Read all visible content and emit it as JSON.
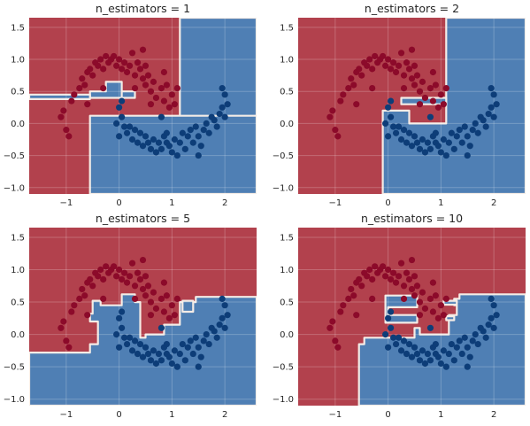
{
  "chart_data": [
    {
      "type": "scatter",
      "title": "n_estimators = 1",
      "xlim": [
        -1.7,
        2.6
      ],
      "ylim": [
        -1.1,
        1.65
      ],
      "xticks": [
        -1,
        0,
        1,
        2
      ],
      "yticks": [
        -1.0,
        -0.5,
        0.0,
        0.5,
        1.0,
        1.5
      ],
      "grid": true,
      "regions_blue": [
        [
          [
            1.15,
            1.65
          ],
          [
            2.6,
            1.65
          ],
          [
            2.6,
            0.1
          ],
          [
            1.15,
            0.1
          ]
        ],
        [
          [
            -0.55,
            0.12
          ],
          [
            2.6,
            0.12
          ],
          [
            2.6,
            -1.1
          ],
          [
            -0.55,
            -1.1
          ]
        ],
        [
          [
            -0.55,
            0.5
          ],
          [
            -0.25,
            0.5
          ],
          [
            -0.25,
            0.65
          ],
          [
            0.05,
            0.65
          ],
          [
            0.05,
            0.4
          ],
          [
            -0.55,
            0.4
          ]
        ],
        [
          [
            0.05,
            0.5
          ],
          [
            0.3,
            0.5
          ],
          [
            0.3,
            0.4
          ],
          [
            0.05,
            0.4
          ]
        ],
        [
          [
            -1.7,
            0.45
          ],
          [
            -0.55,
            0.45
          ],
          [
            -0.55,
            0.38
          ],
          [
            -1.7,
            0.38
          ]
        ]
      ]
    },
    {
      "type": "scatter",
      "title": "n_estimators = 2",
      "xlim": [
        -1.7,
        2.6
      ],
      "ylim": [
        -1.1,
        1.65
      ],
      "xticks": [
        -1,
        0,
        1,
        2
      ],
      "yticks": [
        -1.0,
        -0.5,
        0.0,
        0.5,
        1.0,
        1.5
      ],
      "grid": true,
      "regions_blue": [
        [
          [
            1.1,
            1.65
          ],
          [
            2.6,
            1.65
          ],
          [
            2.6,
            -1.1
          ],
          [
            -0.1,
            -1.1
          ],
          [
            -0.1,
            0.2
          ],
          [
            0.4,
            0.2
          ],
          [
            0.4,
            0.0
          ],
          [
            1.1,
            0.0
          ]
        ],
        [
          [
            0.25,
            0.4
          ],
          [
            1.1,
            0.4
          ],
          [
            1.1,
            0.3
          ],
          [
            0.25,
            0.3
          ]
        ]
      ]
    },
    {
      "type": "scatter",
      "title": "n_estimators = 5",
      "xlim": [
        -1.7,
        2.6
      ],
      "ylim": [
        -1.1,
        1.65
      ],
      "xticks": [
        -1,
        0,
        1,
        2
      ],
      "yticks": [
        -1.0,
        -0.5,
        0.0,
        0.5,
        1.0,
        1.5
      ],
      "grid": true,
      "regions_blue": [
        [
          [
            -1.7,
            -0.28
          ],
          [
            -0.55,
            -0.28
          ],
          [
            -0.55,
            -0.15
          ],
          [
            -0.4,
            -0.15
          ],
          [
            -0.4,
            0.2
          ],
          [
            -0.55,
            0.2
          ],
          [
            -0.55,
            0.32
          ],
          [
            -0.5,
            0.32
          ],
          [
            -0.5,
            0.52
          ],
          [
            -0.35,
            0.52
          ],
          [
            -0.35,
            0.45
          ],
          [
            0.05,
            0.45
          ],
          [
            0.05,
            0.62
          ],
          [
            0.3,
            0.62
          ],
          [
            0.3,
            0.5
          ],
          [
            0.4,
            0.5
          ],
          [
            0.4,
            -0.05
          ],
          [
            0.5,
            -0.05
          ],
          [
            0.5,
            0.0
          ],
          [
            0.85,
            0.0
          ],
          [
            0.85,
            0.15
          ],
          [
            1.15,
            0.15
          ],
          [
            1.15,
            0.5
          ],
          [
            1.45,
            0.5
          ],
          [
            1.45,
            0.58
          ],
          [
            2.6,
            0.58
          ],
          [
            2.6,
            -1.1
          ],
          [
            -1.7,
            -1.1
          ]
        ],
        [
          [
            1.2,
            0.52
          ],
          [
            1.4,
            0.52
          ],
          [
            1.4,
            0.35
          ],
          [
            1.2,
            0.35
          ]
        ]
      ]
    },
    {
      "type": "scatter",
      "title": "n_estimators = 10",
      "xlim": [
        -1.7,
        2.6
      ],
      "ylim": [
        -1.1,
        1.65
      ],
      "xticks": [
        -1,
        0,
        1,
        2
      ],
      "yticks": [
        -1.0,
        -0.5,
        0.0,
        0.5,
        1.0,
        1.5
      ],
      "grid": true,
      "regions_blue": [
        [
          [
            -0.55,
            -1.1
          ],
          [
            -0.55,
            -0.15
          ],
          [
            -0.45,
            -0.15
          ],
          [
            -0.45,
            -0.05
          ],
          [
            0.5,
            -0.05
          ],
          [
            0.5,
            0.1
          ],
          [
            0.6,
            0.1
          ],
          [
            0.6,
            0.0
          ],
          [
            1.15,
            0.0
          ],
          [
            1.15,
            0.3
          ],
          [
            1.3,
            0.3
          ],
          [
            1.3,
            0.45
          ],
          [
            1.25,
            0.45
          ],
          [
            1.25,
            0.55
          ],
          [
            1.35,
            0.55
          ],
          [
            1.35,
            0.62
          ],
          [
            2.6,
            0.62
          ],
          [
            2.6,
            -1.1
          ]
        ],
        [
          [
            -0.05,
            0.6
          ],
          [
            0.55,
            0.6
          ],
          [
            0.55,
            0.42
          ],
          [
            0.0,
            0.42
          ],
          [
            0.0,
            0.3
          ],
          [
            0.55,
            0.3
          ],
          [
            0.55,
            0.18
          ],
          [
            -0.05,
            0.18
          ]
        ],
        [
          [
            1.05,
            0.52
          ],
          [
            1.3,
            0.52
          ],
          [
            1.3,
            0.46
          ],
          [
            1.05,
            0.46
          ]
        ],
        [
          [
            1.1,
            0.28
          ],
          [
            1.25,
            0.28
          ],
          [
            1.25,
            0.22
          ],
          [
            1.1,
            0.22
          ]
        ]
      ]
    }
  ],
  "points_red": [
    [
      -1.1,
      0.1
    ],
    [
      -1.05,
      0.2
    ],
    [
      -1.0,
      -0.1
    ],
    [
      -0.95,
      -0.2
    ],
    [
      -0.9,
      0.35
    ],
    [
      -0.85,
      0.45
    ],
    [
      -0.75,
      0.55
    ],
    [
      -0.7,
      0.7
    ],
    [
      -0.65,
      0.6
    ],
    [
      -0.6,
      0.8
    ],
    [
      -0.55,
      0.85
    ],
    [
      -0.5,
      0.75
    ],
    [
      -0.45,
      0.95
    ],
    [
      -0.4,
      0.9
    ],
    [
      -0.35,
      1.0
    ],
    [
      -0.3,
      0.85
    ],
    [
      -0.25,
      1.05
    ],
    [
      -0.2,
      0.95
    ],
    [
      -0.15,
      1.0
    ],
    [
      -0.1,
      1.05
    ],
    [
      -0.05,
      0.9
    ],
    [
      0.0,
      1.0
    ],
    [
      0.05,
      0.85
    ],
    [
      0.1,
      0.95
    ],
    [
      0.15,
      0.8
    ],
    [
      0.2,
      0.9
    ],
    [
      0.25,
      1.1
    ],
    [
      0.3,
      0.75
    ],
    [
      0.35,
      0.95
    ],
    [
      0.4,
      0.85
    ],
    [
      0.45,
      1.15
    ],
    [
      0.45,
      0.7
    ],
    [
      0.5,
      0.9
    ],
    [
      0.5,
      0.6
    ],
    [
      0.55,
      0.75
    ],
    [
      0.6,
      0.5
    ],
    [
      0.6,
      0.3
    ],
    [
      0.65,
      0.65
    ],
    [
      0.7,
      0.4
    ],
    [
      0.8,
      0.55
    ],
    [
      0.85,
      0.35
    ],
    [
      0.9,
      0.6
    ],
    [
      1.0,
      0.45
    ],
    [
      1.05,
      0.3
    ],
    [
      1.1,
      0.55
    ],
    [
      0.85,
      0.8
    ],
    [
      0.95,
      0.25
    ],
    [
      -0.3,
      0.55
    ],
    [
      -0.6,
      0.3
    ],
    [
      0.3,
      0.55
    ]
  ],
  "points_blue": [
    [
      -0.05,
      0.0
    ],
    [
      0.0,
      -0.2
    ],
    [
      0.05,
      0.35
    ],
    [
      0.05,
      0.1
    ],
    [
      0.1,
      -0.05
    ],
    [
      0.15,
      -0.15
    ],
    [
      0.2,
      -0.05
    ],
    [
      0.25,
      -0.25
    ],
    [
      0.3,
      -0.1
    ],
    [
      0.35,
      -0.3
    ],
    [
      0.4,
      -0.15
    ],
    [
      0.45,
      -0.35
    ],
    [
      0.5,
      -0.2
    ],
    [
      0.55,
      -0.3
    ],
    [
      0.6,
      -0.4
    ],
    [
      0.65,
      -0.25
    ],
    [
      0.7,
      -0.45
    ],
    [
      0.75,
      -0.3
    ],
    [
      0.8,
      -0.4
    ],
    [
      0.85,
      -0.2
    ],
    [
      0.9,
      -0.3
    ],
    [
      0.95,
      -0.35
    ],
    [
      1.0,
      -0.45
    ],
    [
      1.05,
      -0.25
    ],
    [
      1.1,
      -0.5
    ],
    [
      1.15,
      -0.3
    ],
    [
      1.2,
      -0.15
    ],
    [
      1.25,
      -0.4
    ],
    [
      1.3,
      -0.2
    ],
    [
      1.35,
      -0.1
    ],
    [
      1.4,
      -0.3
    ],
    [
      1.45,
      -0.05
    ],
    [
      1.5,
      -0.2
    ],
    [
      1.55,
      -0.35
    ],
    [
      1.6,
      -0.1
    ],
    [
      1.65,
      0.0
    ],
    [
      1.7,
      -0.15
    ],
    [
      1.75,
      0.1
    ],
    [
      1.8,
      0.05
    ],
    [
      1.85,
      -0.05
    ],
    [
      1.9,
      0.15
    ],
    [
      1.95,
      0.25
    ],
    [
      2.0,
      0.1
    ],
    [
      2.05,
      0.3
    ],
    [
      2.0,
      0.45
    ],
    [
      1.95,
      0.55
    ],
    [
      0.9,
      -0.15
    ],
    [
      1.5,
      -0.5
    ],
    [
      0.0,
      0.25
    ],
    [
      0.8,
      0.1
    ]
  ]
}
